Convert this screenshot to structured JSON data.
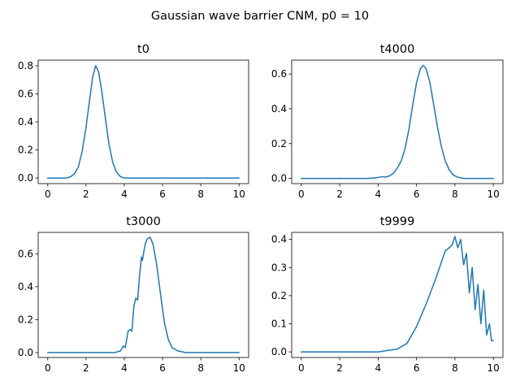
{
  "figure": {
    "suptitle": "Gaussian wave barrier CNM, p0 = 10",
    "series_color": "#1f77b4"
  },
  "chart_data": [
    {
      "type": "line",
      "title": "t0",
      "xlabel": "",
      "ylabel": "",
      "xlim": [
        -0.5,
        10.5
      ],
      "ylim": [
        -0.04,
        0.84
      ],
      "xticks": [
        "0",
        "2",
        "4",
        "6",
        "8",
        "10"
      ],
      "yticks": [
        "0.0",
        "0.2",
        "0.4",
        "0.6",
        "0.8"
      ],
      "x": [
        0,
        1.0,
        1.2,
        1.4,
        1.6,
        1.8,
        2.0,
        2.2,
        2.35,
        2.5,
        2.65,
        2.8,
        3.0,
        3.2,
        3.4,
        3.6,
        3.8,
        4.0,
        4.5,
        10
      ],
      "y": [
        0.0,
        0.0,
        0.01,
        0.03,
        0.08,
        0.19,
        0.36,
        0.57,
        0.72,
        0.8,
        0.76,
        0.64,
        0.44,
        0.24,
        0.11,
        0.04,
        0.01,
        0.0,
        0.0,
        0.0
      ]
    },
    {
      "type": "line",
      "title": "t4000",
      "xlabel": "",
      "ylabel": "",
      "xlim": [
        -0.5,
        10.5
      ],
      "ylim": [
        -0.03,
        0.68
      ],
      "xticks": [
        "0",
        "2",
        "4",
        "6",
        "8",
        "10"
      ],
      "yticks": [
        "0.0",
        "0.2",
        "0.4",
        "0.6"
      ],
      "x": [
        0,
        3.5,
        4.0,
        4.2,
        4.4,
        4.6,
        4.8,
        5.0,
        5.2,
        5.4,
        5.6,
        5.8,
        6.0,
        6.2,
        6.35,
        6.5,
        6.7,
        6.9,
        7.1,
        7.3,
        7.5,
        7.7,
        7.9,
        8.2,
        8.5,
        10
      ],
      "y": [
        0.0,
        0.0,
        0.005,
        0.01,
        0.008,
        0.015,
        0.03,
        0.06,
        0.1,
        0.17,
        0.28,
        0.42,
        0.55,
        0.63,
        0.65,
        0.63,
        0.55,
        0.42,
        0.29,
        0.18,
        0.1,
        0.05,
        0.02,
        0.005,
        0.0,
        0.0
      ]
    },
    {
      "type": "line",
      "title": "t3000",
      "xlabel": "",
      "ylabel": "",
      "xlim": [
        -0.5,
        10.5
      ],
      "ylim": [
        -0.03,
        0.73
      ],
      "xticks": [
        "0",
        "2",
        "4",
        "6",
        "8",
        "10"
      ],
      "yticks": [
        "0.0",
        "0.2",
        "0.4",
        "0.6"
      ],
      "x": [
        0,
        3.5,
        3.8,
        3.95,
        4.05,
        4.2,
        4.3,
        4.4,
        4.5,
        4.6,
        4.7,
        4.8,
        4.9,
        4.95,
        5.0,
        5.1,
        5.2,
        5.35,
        5.5,
        5.7,
        5.9,
        6.1,
        6.3,
        6.5,
        6.8,
        7.2,
        10
      ],
      "y": [
        0.0,
        0.0,
        0.01,
        0.04,
        0.03,
        0.13,
        0.14,
        0.13,
        0.28,
        0.33,
        0.32,
        0.47,
        0.58,
        0.56,
        0.6,
        0.66,
        0.69,
        0.7,
        0.66,
        0.53,
        0.35,
        0.18,
        0.08,
        0.03,
        0.01,
        0.0,
        0.0
      ]
    },
    {
      "type": "line",
      "title": "t9999",
      "xlabel": "",
      "ylabel": "",
      "xlim": [
        -0.5,
        10.5
      ],
      "ylim": [
        -0.02,
        0.425
      ],
      "xticks": [
        "0",
        "2",
        "4",
        "6",
        "8",
        "10"
      ],
      "yticks": [
        "0.0",
        "0.1",
        "0.2",
        "0.3",
        "0.4"
      ],
      "x": [
        0,
        4.0,
        5.0,
        5.5,
        6.0,
        6.5,
        7.0,
        7.3,
        7.5,
        7.7,
        7.85,
        8.0,
        8.15,
        8.3,
        8.45,
        8.6,
        8.75,
        8.9,
        9.05,
        9.2,
        9.35,
        9.5,
        9.65,
        9.8,
        9.9,
        10.0
      ],
      "y": [
        0.0,
        0.0,
        0.01,
        0.03,
        0.09,
        0.17,
        0.26,
        0.32,
        0.36,
        0.37,
        0.38,
        0.41,
        0.37,
        0.4,
        0.31,
        0.35,
        0.21,
        0.3,
        0.15,
        0.24,
        0.1,
        0.22,
        0.06,
        0.1,
        0.04,
        0.04
      ]
    }
  ]
}
